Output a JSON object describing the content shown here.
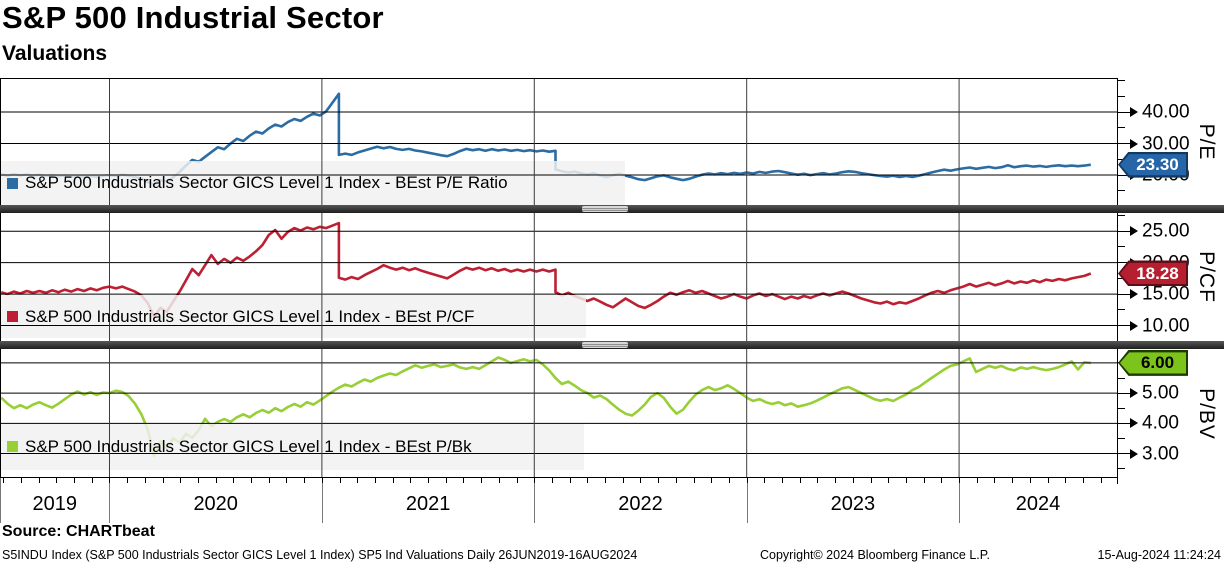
{
  "header": {
    "title": "S&P 500 Industrial Sector",
    "subtitle": "Valuations"
  },
  "x_axis": {
    "domain": [
      2019.4845,
      2024.7435
    ],
    "grid_years": [
      2020,
      2021,
      2022,
      2023,
      2024
    ],
    "year_labels": [
      {
        "label": "2019",
        "year": 2019
      },
      {
        "label": "2020",
        "year": 2020
      },
      {
        "label": "2021",
        "year": 2021
      },
      {
        "label": "2022",
        "year": 2022
      },
      {
        "label": "2023",
        "year": 2023
      },
      {
        "label": "2024",
        "year": 2024
      }
    ]
  },
  "chart_data": [
    {
      "type": "line",
      "name": "pe",
      "axis_title": "P/E",
      "legend": "S&P 500 Industrials Sector GICS Level 1 Index - BEst P/E Ratio",
      "color": "#2b6ca3",
      "last_value": "23.30",
      "tag_bg": "#2565a8",
      "tag_fg": "#ffffff",
      "tag_border": "#14395f",
      "ylim": [
        10.5,
        50.8
      ],
      "yticks": [
        {
          "v": 40,
          "label": "40.00"
        },
        {
          "v": 30,
          "label": "30.00"
        },
        {
          "v": 20,
          "label": "20.00"
        }
      ],
      "yticks_minor": [
        50,
        45,
        35,
        25,
        15
      ],
      "series": {
        "x0": 2019.49,
        "dx": 0.03,
        "y": [
          20.2,
          19.8,
          20.3,
          19.9,
          20.2,
          19.8,
          20.1,
          19.7,
          20.0,
          19.6,
          19.9,
          19.5,
          19.8,
          19.4,
          19.7,
          19.4,
          19.8,
          20.0,
          19.7,
          20.1,
          19.8,
          19.4,
          18.9,
          17.8,
          16.9,
          18.4,
          17.9,
          19.3,
          21.0,
          23.0,
          24.8,
          24.2,
          25.8,
          27.3,
          28.8,
          28.2,
          30.0,
          31.5,
          30.8,
          32.5,
          33.8,
          33.2,
          34.8,
          36.0,
          35.4,
          36.8,
          37.8,
          37.2,
          38.5,
          39.5,
          38.9,
          40.2,
          43.0,
          [
            45.8,
            26.4
          ],
          26.8,
          26.4,
          27.2,
          27.8,
          28.4,
          29.0,
          28.5,
          28.9,
          28.3,
          28.0,
          28.3,
          27.8,
          27.5,
          27.1,
          26.7,
          26.3,
          26.0,
          26.7,
          27.6,
          28.3,
          27.9,
          28.2,
          27.7,
          28.2,
          27.8,
          28.1,
          27.7,
          28.0,
          27.6,
          27.9,
          27.5,
          27.8,
          27.4,
          [
            27.7,
            21.8
          ],
          21.2,
          20.8,
          21.1,
          20.6,
          20.1,
          20.6,
          19.9,
          19.4,
          19.9,
          20.4,
          19.8,
          19.3,
          18.7,
          18.4,
          19.0,
          19.6,
          19.9,
          19.3,
          18.8,
          18.4,
          18.8,
          19.5,
          20.1,
          20.5,
          20.2,
          20.6,
          20.3,
          20.7,
          20.4,
          20.8,
          20.5,
          21.0,
          20.7,
          21.1,
          21.3,
          20.9,
          20.5,
          20.1,
          20.4,
          20.0,
          20.3,
          20.6,
          20.2,
          20.5,
          20.9,
          21.2,
          21.0,
          20.6,
          20.3,
          20.0,
          19.7,
          19.5,
          19.8,
          19.4,
          19.7,
          19.4,
          19.8,
          20.3,
          20.8,
          21.3,
          21.7,
          21.4,
          21.8,
          22.1,
          22.4,
          22.0,
          22.3,
          22.6,
          22.2,
          22.5,
          23.1,
          22.5,
          22.8,
          23.0,
          22.7,
          22.9,
          22.6,
          22.9,
          23.1,
          22.8,
          23.0,
          22.8,
          23.0,
          23.3
        ]
      }
    },
    {
      "type": "line",
      "name": "pcf",
      "axis_title": "P/CF",
      "legend": "S&P 500 Industrials Sector GICS Level 1 Index - BEst P/CF",
      "color": "#bd2033",
      "last_value": "18.28",
      "tag_bg": "#b51f30",
      "tag_fg": "#ffffff",
      "tag_border": "#5e0c16",
      "ylim": [
        7.54,
        27.9
      ],
      "yticks": [
        {
          "v": 25,
          "label": "25.00"
        },
        {
          "v": 20,
          "label": "20.00"
        },
        {
          "v": 15,
          "label": "15.00"
        },
        {
          "v": 10,
          "label": "10.00"
        }
      ],
      "yticks_minor": [
        27.5,
        22.5,
        17.5,
        12.5
      ],
      "series": {
        "x0": 2019.49,
        "dx": 0.03,
        "y": [
          15.3,
          15.0,
          15.4,
          15.1,
          15.5,
          15.2,
          15.5,
          15.2,
          15.6,
          15.3,
          15.7,
          15.4,
          15.8,
          15.5,
          15.9,
          15.6,
          16.0,
          16.2,
          15.9,
          16.2,
          15.8,
          15.4,
          14.8,
          13.6,
          11.4,
          12.8,
          12.2,
          13.8,
          15.4,
          17.2,
          19.0,
          18.0,
          19.6,
          21.2,
          19.8,
          20.6,
          20.0,
          20.8,
          20.3,
          21.0,
          21.8,
          22.8,
          24.4,
          25.2,
          23.8,
          24.9,
          25.5,
          25.1,
          25.6,
          25.3,
          25.7,
          25.5,
          25.9,
          [
            26.3,
            17.6
          ],
          17.3,
          17.7,
          17.4,
          18.0,
          18.5,
          19.0,
          19.6,
          19.2,
          18.9,
          19.2,
          18.8,
          19.1,
          18.7,
          18.4,
          18.1,
          17.8,
          17.5,
          18.1,
          18.7,
          19.2,
          18.9,
          19.2,
          18.8,
          19.1,
          18.7,
          19.0,
          18.6,
          18.9,
          18.6,
          18.9,
          18.6,
          18.9,
          18.6,
          [
            18.9,
            15.3
          ],
          14.8,
          15.2,
          14.7,
          14.3,
          13.9,
          14.3,
          13.8,
          13.3,
          12.9,
          13.6,
          14.3,
          13.7,
          13.1,
          12.8,
          13.3,
          13.9,
          14.6,
          15.2,
          14.9,
          15.3,
          15.6,
          15.2,
          15.5,
          15.1,
          14.7,
          14.3,
          14.6,
          15.0,
          14.6,
          14.3,
          14.8,
          15.1,
          14.7,
          15.0,
          14.6,
          14.2,
          14.6,
          14.3,
          14.7,
          14.4,
          14.8,
          15.1,
          14.8,
          15.1,
          15.4,
          15.1,
          14.7,
          14.3,
          14.0,
          13.7,
          13.5,
          13.8,
          13.4,
          13.7,
          13.5,
          13.9,
          14.3,
          14.8,
          15.2,
          15.5,
          15.2,
          15.6,
          15.9,
          16.2,
          16.6,
          16.2,
          16.5,
          16.8,
          16.4,
          16.7,
          17.1,
          16.7,
          17.0,
          16.8,
          17.2,
          16.9,
          17.3,
          17.1,
          17.4,
          17.2,
          17.5,
          17.7,
          17.9,
          18.28
        ]
      }
    },
    {
      "type": "line",
      "name": "pbv",
      "axis_title": "P/BV",
      "legend": "S&P 500 Industrials Sector GICS Level 1 Index - BEst P/Bk",
      "color": "#97cf35",
      "last_value": "6.00",
      "tag_bg": "#7cc41c",
      "tag_fg": "#000000",
      "tag_border": "#1e3a00",
      "ylim": [
        2.19,
        6.46
      ],
      "yticks": [
        {
          "v": 6,
          "label": "6.00"
        },
        {
          "v": 5,
          "label": "5.00"
        },
        {
          "v": 4,
          "label": "4.00"
        },
        {
          "v": 3,
          "label": "3.00"
        }
      ],
      "yticks_minor": [
        5.5,
        4.5,
        3.5,
        2.5
      ],
      "series": {
        "x0": 2019.49,
        "dx": 0.03,
        "y": [
          4.85,
          4.65,
          4.5,
          4.6,
          4.5,
          4.62,
          4.7,
          4.6,
          4.52,
          4.65,
          4.8,
          4.95,
          5.05,
          4.95,
          5.03,
          4.94,
          5.02,
          5.0,
          5.08,
          5.04,
          4.9,
          4.65,
          4.3,
          3.8,
          2.92,
          3.4,
          3.18,
          3.5,
          3.36,
          3.65,
          3.52,
          3.78,
          4.15,
          3.9,
          4.05,
          4.14,
          4.05,
          4.2,
          4.3,
          4.2,
          4.34,
          4.44,
          4.35,
          4.5,
          4.4,
          4.54,
          4.64,
          4.55,
          4.7,
          4.62,
          4.76,
          4.9,
          5.05,
          5.18,
          5.28,
          5.22,
          5.34,
          5.45,
          5.38,
          5.5,
          5.58,
          5.65,
          5.6,
          5.72,
          5.82,
          5.92,
          5.84,
          5.9,
          5.95,
          5.86,
          5.9,
          5.95,
          5.85,
          5.8,
          5.86,
          5.8,
          5.92,
          6.05,
          6.18,
          6.1,
          6.0,
          6.06,
          6.12,
          6.05,
          6.1,
          5.95,
          5.75,
          5.5,
          5.3,
          5.38,
          5.25,
          5.1,
          5.0,
          4.85,
          4.92,
          4.8,
          4.62,
          4.45,
          4.32,
          4.26,
          4.42,
          4.62,
          4.88,
          5.0,
          4.84,
          4.55,
          4.32,
          4.45,
          4.72,
          4.95,
          5.1,
          5.2,
          5.1,
          5.16,
          5.26,
          5.14,
          5.0,
          4.85,
          4.74,
          4.8,
          4.7,
          4.64,
          4.7,
          4.6,
          4.66,
          4.55,
          4.6,
          4.66,
          4.75,
          4.85,
          4.96,
          5.06,
          5.16,
          5.2,
          5.1,
          5.0,
          4.9,
          4.8,
          4.75,
          4.8,
          4.74,
          4.85,
          4.95,
          5.1,
          5.2,
          5.35,
          5.5,
          5.64,
          5.78,
          5.9,
          5.95,
          6.05,
          6.15,
          5.7,
          5.8,
          5.9,
          5.84,
          5.9,
          5.8,
          5.75,
          5.85,
          5.8,
          5.86,
          5.8,
          5.76,
          5.8,
          5.86,
          5.95,
          6.05,
          5.78,
          6.02,
          6.0
        ]
      }
    }
  ],
  "footer": {
    "source_label": "Source: CHARTbeat",
    "description": "S5INDU Index (S&P 500 Industrials Sector GICS Level 1 Index) SP5 Ind Valuations  Daily 26JUN2019-16AUG2024",
    "copyright": "Copyright© 2024 Bloomberg Finance L.P.",
    "datetime": "15-Aug-2024 11:24:24"
  }
}
